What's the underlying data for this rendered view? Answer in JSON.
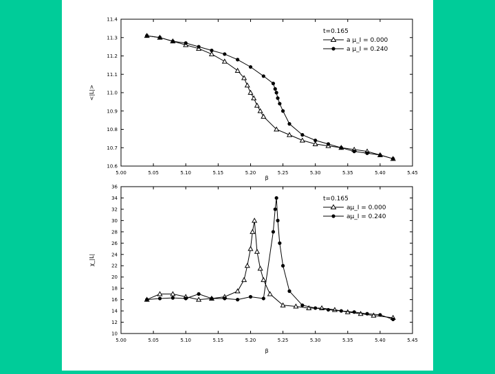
{
  "colors": {
    "background": "#00cc99",
    "slide": "#ffffff",
    "ink": "#000000"
  },
  "chart_data": [
    {
      "type": "line",
      "xlabel": "β",
      "ylabel": "<|L|>",
      "xlim": [
        5.0,
        5.45
      ],
      "ylim": [
        10.6,
        11.4
      ],
      "xticks": [
        "5.00",
        "5.05",
        "5.10",
        "5.15",
        "5.20",
        "5.25",
        "5.30",
        "5.35",
        "5.40",
        "5.45"
      ],
      "yticks": [
        "10.6",
        "10.7",
        "10.8",
        "10.9",
        "11.0",
        "11.1",
        "11.2",
        "11.3",
        "11.4"
      ],
      "grid": false,
      "legend_position": "top-right",
      "legend_header": "t=0.165",
      "series": [
        {
          "name": "a μ_I = 0.000",
          "marker": "triangle-open",
          "x": [
            5.04,
            5.06,
            5.08,
            5.1,
            5.12,
            5.14,
            5.16,
            5.18,
            5.19,
            5.195,
            5.2,
            5.205,
            5.21,
            5.215,
            5.22,
            5.24,
            5.26,
            5.28,
            5.3,
            5.32,
            5.34,
            5.36,
            5.38,
            5.4,
            5.42
          ],
          "y": [
            11.31,
            11.3,
            11.28,
            11.26,
            11.24,
            11.21,
            11.17,
            11.12,
            11.08,
            11.04,
            11.0,
            10.97,
            10.93,
            10.9,
            10.87,
            10.8,
            10.77,
            10.74,
            10.72,
            10.71,
            10.7,
            10.69,
            10.68,
            10.66,
            10.64
          ]
        },
        {
          "name": "a μ_I = 0.240",
          "marker": "circle-filled",
          "x": [
            5.04,
            5.06,
            5.08,
            5.1,
            5.12,
            5.14,
            5.16,
            5.18,
            5.2,
            5.22,
            5.235,
            5.238,
            5.24,
            5.242,
            5.245,
            5.25,
            5.26,
            5.28,
            5.3,
            5.32,
            5.34,
            5.36,
            5.38,
            5.4,
            5.42
          ],
          "y": [
            11.31,
            11.3,
            11.28,
            11.27,
            11.25,
            11.23,
            11.21,
            11.18,
            11.14,
            11.09,
            11.05,
            11.02,
            11.0,
            10.97,
            10.94,
            10.9,
            10.83,
            10.77,
            10.74,
            10.72,
            10.7,
            10.68,
            10.67,
            10.66,
            10.64
          ]
        }
      ]
    },
    {
      "type": "line",
      "xlabel": "β",
      "ylabel": "χ_|L|",
      "xlim": [
        5.0,
        5.45
      ],
      "ylim": [
        10,
        36
      ],
      "xticks": [
        "5.00",
        "5.05",
        "5.10",
        "5.15",
        "5.20",
        "5.25",
        "5.30",
        "5.35",
        "5.40",
        "5.45"
      ],
      "yticks": [
        "10",
        "12",
        "14",
        "16",
        "18",
        "20",
        "22",
        "24",
        "26",
        "28",
        "30",
        "32",
        "34",
        "36"
      ],
      "grid": false,
      "legend_position": "top-right",
      "legend_header": "t=0.165",
      "series": [
        {
          "name": "aμ_I = 0.000",
          "marker": "triangle-open",
          "x": [
            5.04,
            5.06,
            5.08,
            5.1,
            5.12,
            5.14,
            5.16,
            5.18,
            5.19,
            5.195,
            5.2,
            5.203,
            5.206,
            5.21,
            5.215,
            5.22,
            5.23,
            5.25,
            5.27,
            5.29,
            5.31,
            5.33,
            5.35,
            5.37,
            5.39,
            5.42
          ],
          "y": [
            16.0,
            17.0,
            17.0,
            16.5,
            16.0,
            16.2,
            16.5,
            17.5,
            19.5,
            22.0,
            25.0,
            28.0,
            30.0,
            24.5,
            21.5,
            19.5,
            17.0,
            15.0,
            14.8,
            14.5,
            14.5,
            14.2,
            13.8,
            13.5,
            13.2,
            12.8
          ]
        },
        {
          "name": "aμ_I = 0.240",
          "marker": "circle-filled",
          "x": [
            5.04,
            5.06,
            5.08,
            5.1,
            5.12,
            5.14,
            5.16,
            5.18,
            5.2,
            5.22,
            5.235,
            5.238,
            5.24,
            5.242,
            5.245,
            5.25,
            5.26,
            5.28,
            5.3,
            5.32,
            5.34,
            5.36,
            5.38,
            5.4,
            5.42
          ],
          "y": [
            16.0,
            16.2,
            16.3,
            16.2,
            17.0,
            16.2,
            16.2,
            16.0,
            16.5,
            16.2,
            28.0,
            32.0,
            34.0,
            30.0,
            26.0,
            22.0,
            17.5,
            15.0,
            14.5,
            14.2,
            14.0,
            13.8,
            13.5,
            13.3,
            12.5
          ]
        }
      ]
    }
  ]
}
